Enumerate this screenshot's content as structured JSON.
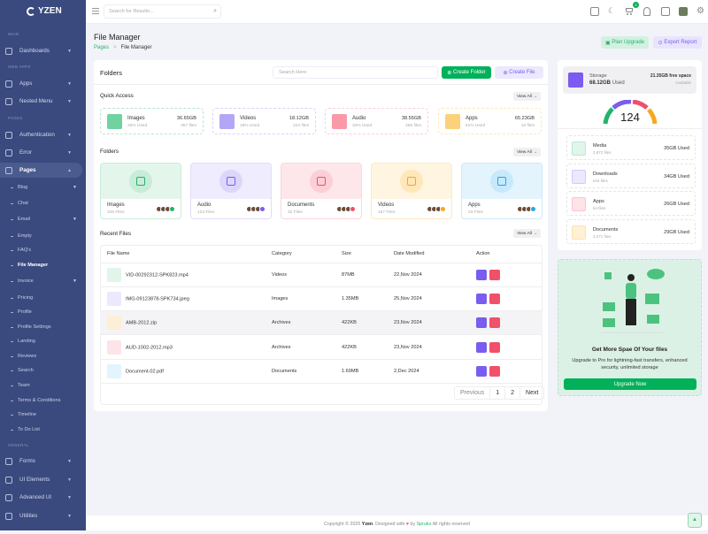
{
  "brand": {
    "name": "YZEN"
  },
  "sidebar": {
    "sections": {
      "main": "MAIN",
      "web_apps": "WEB APPS",
      "pages": "PAGES",
      "general": "GENERAL"
    },
    "items": {
      "dashboards": "Dashboards",
      "apps": "Apps",
      "nested": "Nested Menu",
      "auth": "Authentication",
      "error": "Error",
      "pages": "Pages",
      "forms": "Forms",
      "ui": "UI Elements",
      "advanced": "Advanced UI",
      "utilities": "Utilities"
    },
    "subitems": [
      "Blog",
      "Chat",
      "Email",
      "Empty",
      "FAQ's",
      "File Manager",
      "Invoice",
      "Pricing",
      "Profile",
      "Profile Settings",
      "Landing",
      "Reviews",
      "Search",
      "Team",
      "Terms & Conditions",
      "Timeline",
      "To Do List"
    ]
  },
  "header": {
    "search_placeholder": "Search for Results...",
    "cart_badge": "5"
  },
  "page": {
    "title": "File Manager",
    "breadcrumb": [
      "Pages",
      "File Manager"
    ],
    "plan_upgrade": "Plan Upgrade",
    "export_report": "Export Report"
  },
  "main": {
    "title": "Folders",
    "search_placeholder": "Search Here",
    "create_folder": "Create Folder",
    "create_file": "Create File",
    "quick_access_title": "Quick Access",
    "view_all": "View All",
    "quick_access": [
      {
        "name": "Images",
        "percent": "26% Used",
        "size": "36.65GB",
        "files": "357 files",
        "color": "#6fd3a0",
        "border": "#b8e8cf"
      },
      {
        "name": "Videos",
        "percent": "18% Used",
        "size": "18.12GB",
        "files": "224 files",
        "color": "#b3a6f7",
        "border": "#d9d2fb"
      },
      {
        "name": "Audio",
        "percent": "33% Used",
        "size": "38.55GB",
        "files": "455 files",
        "color": "#f99aa6",
        "border": "#fcd0d6"
      },
      {
        "name": "Apps",
        "percent": "51% Used",
        "size": "65.23GB",
        "files": "16 files",
        "color": "#fbd27a",
        "border": "#fde8bd"
      }
    ],
    "folders_title": "Folders",
    "folders": [
      {
        "name": "Images",
        "count": "345 Files",
        "bg": "#e4f6ec",
        "circle": "#c9ecd9",
        "icon": "#22b46a",
        "border": "#c9ecd9"
      },
      {
        "name": "Audio",
        "count": "123 Files",
        "bg": "#efecfd",
        "circle": "#ddd6fb",
        "icon": "#7a5cf0",
        "border": "#e2dcfb"
      },
      {
        "name": "Documents",
        "count": "32 Files",
        "bg": "#fde7ea",
        "circle": "#fbcfd5",
        "icon": "#f0506a",
        "border": "#fbd6dc"
      },
      {
        "name": "Videos",
        "count": "167 Files",
        "bg": "#fff5e1",
        "circle": "#ffe7b8",
        "icon": "#f6a821",
        "border": "#fde9c3"
      },
      {
        "name": "Apps",
        "count": "23 Files",
        "bg": "#e3f4fd",
        "circle": "#c7e9fb",
        "icon": "#1fa8e8",
        "border": "#cde9f8"
      }
    ],
    "recent_title": "Recent Files",
    "table": {
      "headers": [
        "File Name",
        "Category",
        "Size",
        "Date Modified",
        "Action"
      ],
      "rows": [
        {
          "name": "VID-00292312-SPK823.mp4",
          "category": "Videos",
          "size": "87MB",
          "date": "22,Nov 2024",
          "color": "#e1f5ea"
        },
        {
          "name": "IMG-09123878-SPK734.jpeg",
          "category": "Images",
          "size": "1.35MB",
          "date": "25,Nov 2024",
          "color": "#ece8fd"
        },
        {
          "name": "AMB-2012.zip",
          "category": "Archives",
          "size": "422KB",
          "date": "23,Nov 2024",
          "color": "#fcefd5"
        },
        {
          "name": "AUD-1002-2012.mp3",
          "category": "Archives",
          "size": "422KB",
          "date": "23,Nov 2024",
          "color": "#fde4e8"
        },
        {
          "name": "Document-02.pdf",
          "category": "Documents",
          "size": "1.69MB",
          "date": "2,Dec 2024",
          "color": "#e2f4fd"
        }
      ]
    },
    "pagination": {
      "previous": "Previous",
      "pages": [
        "1",
        "2"
      ],
      "next": "Next"
    }
  },
  "storage": {
    "label": "Storage",
    "used": "68.12GB",
    "used_suffix": "Used",
    "free": "21.35GB free space",
    "available": "Available",
    "gauge_value": "124",
    "items": [
      {
        "name": "Media",
        "files": "2,872 files",
        "used": "35GB Used",
        "bg": "#e1f5ea",
        "fg": "#22b46a"
      },
      {
        "name": "Downloads",
        "files": "644 files",
        "used": "34GB Used",
        "bg": "#ece8fd",
        "fg": "#7a5cf0"
      },
      {
        "name": "Apps",
        "files": "64 files",
        "used": "26GB Used",
        "bg": "#fde4e8",
        "fg": "#f0506a"
      },
      {
        "name": "Documents",
        "files": "3,271 files",
        "used": "29GB Used",
        "bg": "#fff1d6",
        "fg": "#f6a821"
      }
    ]
  },
  "promo": {
    "title": "Get More Spae Of Your files",
    "text": "Upgrade to Pro for lightning-fast transfers, enhanced security, unlimited storage",
    "button": "Upgrade Now"
  },
  "footer": {
    "prefix": "Copyright © 2025",
    "brand": "Yzen",
    "mid": ". Designed with",
    "by": "by",
    "company": "Spruko",
    "suffix": "All rights reserved"
  },
  "colors": {
    "sidebar": "#3a4a7e",
    "primary": "#00b159",
    "purple": "#7a5cf0",
    "danger": "#f0506a"
  }
}
